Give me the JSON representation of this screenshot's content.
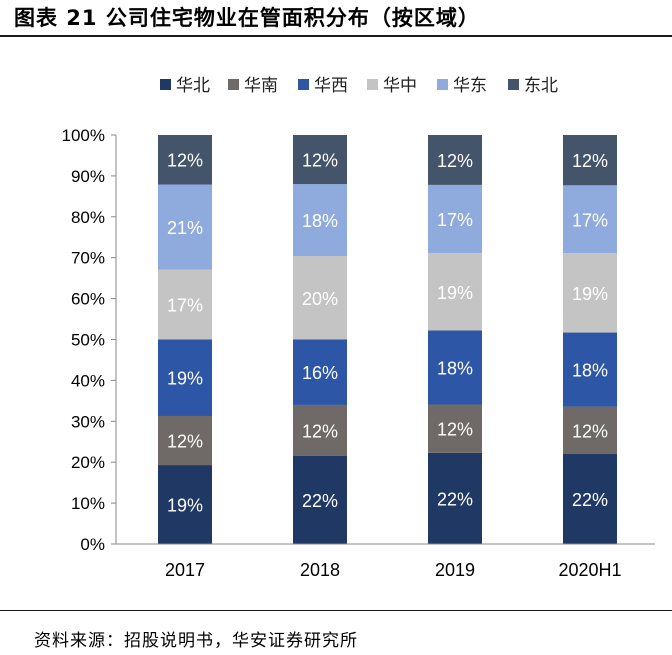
{
  "title": "图表 21 公司住宅物业在管面积分布（按区域）",
  "source": "资料来源：招股说明书，华安证券研究所",
  "chart_data": {
    "type": "bar",
    "stacked": true,
    "categories": [
      "2017",
      "2018",
      "2019",
      "2020H1"
    ],
    "y_ticks": [
      "0%",
      "10%",
      "20%",
      "30%",
      "40%",
      "50%",
      "60%",
      "70%",
      "80%",
      "90%",
      "100%"
    ],
    "ylim": [
      0,
      100
    ],
    "legend_position": "top",
    "series": [
      {
        "name": "华北",
        "color": "#203864",
        "values": [
          19.3,
          21.6,
          22.3,
          22.0
        ],
        "labels": [
          "19%",
          "22%",
          "22%",
          "22%"
        ]
      },
      {
        "name": "华南",
        "color": "#6f6a67",
        "values": [
          12.0,
          12.4,
          11.8,
          11.6
        ],
        "labels": [
          "12%",
          "12%",
          "12%",
          "12%"
        ]
      },
      {
        "name": "华西",
        "color": "#2e56a6",
        "values": [
          18.7,
          16.0,
          18.1,
          18.1
        ],
        "labels": [
          "19%",
          "16%",
          "18%",
          "18%"
        ]
      },
      {
        "name": "华中",
        "color": "#c4c4c4",
        "values": [
          17.1,
          20.4,
          18.9,
          19.4
        ],
        "labels": [
          "17%",
          "20%",
          "19%",
          "19%"
        ]
      },
      {
        "name": "华东",
        "color": "#8faadc",
        "values": [
          20.8,
          17.6,
          16.7,
          16.6
        ],
        "labels": [
          "21%",
          "18%",
          "17%",
          "17%"
        ]
      },
      {
        "name": "东北",
        "color": "#44546a",
        "values": [
          12.1,
          12.0,
          12.2,
          12.3
        ],
        "labels": [
          "12%",
          "12%",
          "12%",
          "12%"
        ]
      }
    ]
  }
}
